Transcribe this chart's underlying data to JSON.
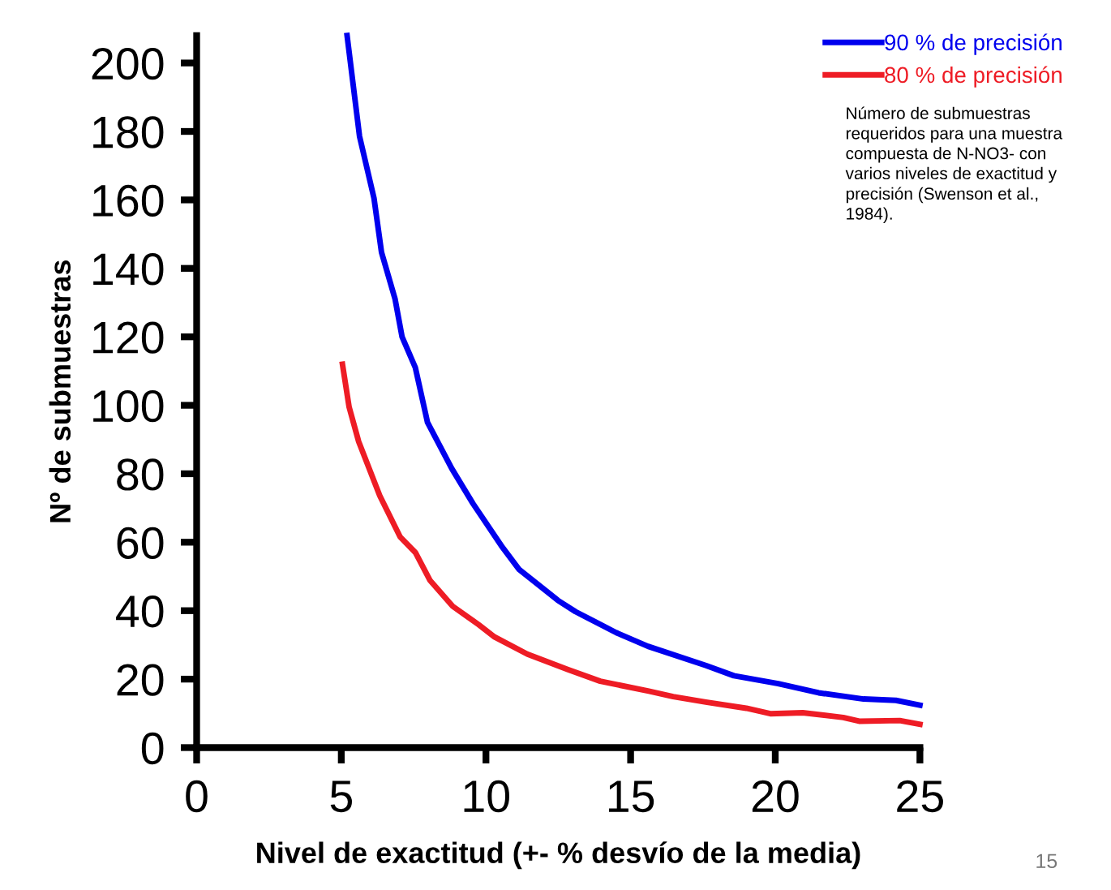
{
  "chart_data": {
    "type": "line",
    "xlabel": "Nivel de exactitud (+- % desvío de la media)",
    "ylabel": "Nº de submuestras",
    "xlim": [
      0,
      25
    ],
    "xticks": [
      0,
      5,
      10,
      15,
      20,
      25
    ],
    "ylim": [
      0,
      208
    ],
    "yticks": [
      0,
      20,
      40,
      60,
      80,
      100,
      120,
      140,
      160,
      180,
      200
    ],
    "grid": false,
    "legend": "top right",
    "marker": "none",
    "line_style": "solid",
    "series": [
      {
        "name": "90 % de precisión",
        "color": "#0000ee",
        "x": [
          5.2,
          5.63,
          6.13,
          6.39,
          6.86,
          7.1,
          7.56,
          7.98,
          8.82,
          9.55,
          10.53,
          11.15,
          12.49,
          13.1,
          14.5,
          15.6,
          17.6,
          18.57,
          20.1,
          21.5,
          23.05,
          24.17,
          25
        ],
        "values": [
          208,
          178.6,
          160.5,
          144.7,
          131,
          120,
          111,
          95,
          81.5,
          71.3,
          59,
          52,
          43,
          39.7,
          33.6,
          29.6,
          24,
          21,
          18.7,
          16,
          14.2,
          13.8,
          12.4
        ]
      },
      {
        "name": "80 % de precisión",
        "color": "#ee1c25",
        "x": [
          5.04,
          5.27,
          5.6,
          6.33,
          7.03,
          7.56,
          8.07,
          8.85,
          9.75,
          10.3,
          11.43,
          12.83,
          13.95,
          15.63,
          16.47,
          17.6,
          19,
          19.83,
          20.95,
          22.35,
          22.9,
          24.3,
          25
        ],
        "values": [
          112,
          99.5,
          89.4,
          73.6,
          61.6,
          57,
          48.8,
          41.3,
          35.9,
          32.3,
          27.3,
          22.8,
          19.4,
          16.5,
          14.9,
          13.3,
          11.5,
          9.9,
          10.2,
          8.8,
          7.7,
          7.9,
          6.8
        ]
      }
    ],
    "annotations": [
      "Número de submuestras\nrequeridos para una muestra\ncompuesta de N-NO3- con\nvarios niveles de exactitud y\nprecisión (Swenson et al.,\n1984).",
      "15"
    ]
  }
}
